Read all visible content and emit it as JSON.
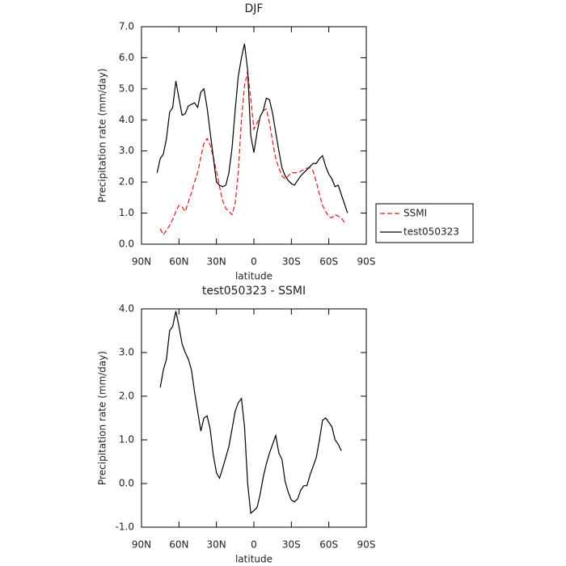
{
  "chart_data": [
    {
      "type": "line",
      "title": "DJF",
      "xlabel": "latitude",
      "ylabel": "Precipitation rate (mm/day)",
      "x": [
        77.5,
        75,
        72.5,
        70,
        67.5,
        65,
        62.5,
        60,
        57.5,
        55,
        52.5,
        50,
        47.5,
        45,
        42.5,
        40,
        37.5,
        35,
        32.5,
        30,
        27.5,
        25,
        22.5,
        20,
        17.5,
        15,
        12.5,
        10,
        7.5,
        5,
        2.5,
        0,
        -2.5,
        -5,
        -7.5,
        -10,
        -12.5,
        -15,
        -17.5,
        -20,
        -22.5,
        -25,
        -27.5,
        -30,
        -32.5,
        -35,
        -37.5,
        -40,
        -42.5,
        -45,
        -47.5,
        -50,
        -52.5,
        -55,
        -57.5,
        -60,
        -62.5,
        -65,
        -67.5,
        -70,
        -72.5,
        -75
      ],
      "series": [
        {
          "name": "SSMI",
          "color": "#e8141c",
          "linestyle": "dashed",
          "values": [
            null,
            0.5,
            0.3,
            0.45,
            0.6,
            0.8,
            1.05,
            1.25,
            1.2,
            1.05,
            1.35,
            1.65,
            2.0,
            2.3,
            2.8,
            3.25,
            3.4,
            3.2,
            2.8,
            2.35,
            1.85,
            1.4,
            1.15,
            1.05,
            0.95,
            1.3,
            2.3,
            4.0,
            5.1,
            5.55,
            4.7,
            3.7,
            3.9,
            4.1,
            4.3,
            4.35,
            3.9,
            3.3,
            2.75,
            2.45,
            2.2,
            2.1,
            2.2,
            2.3,
            2.3,
            2.3,
            2.35,
            2.4,
            2.45,
            2.45,
            2.35,
            2.0,
            1.6,
            1.25,
            1.05,
            0.88,
            0.85,
            0.95,
            0.9,
            0.85,
            0.7,
            null
          ]
        },
        {
          "name": "test050323",
          "color": "#000000",
          "linestyle": "solid",
          "values": [
            2.3,
            2.75,
            2.9,
            3.4,
            4.25,
            4.4,
            5.25,
            4.7,
            4.15,
            4.2,
            4.45,
            4.5,
            4.55,
            4.4,
            4.9,
            5.0,
            4.4,
            3.6,
            2.8,
            2.0,
            1.9,
            1.85,
            1.9,
            2.3,
            3.1,
            4.3,
            5.4,
            6.0,
            6.45,
            5.6,
            3.5,
            2.95,
            3.6,
            4.1,
            4.3,
            4.7,
            4.65,
            4.2,
            3.6,
            3.0,
            2.45,
            2.2,
            2.05,
            1.95,
            1.9,
            2.05,
            2.2,
            2.3,
            2.4,
            2.5,
            2.6,
            2.6,
            2.75,
            2.85,
            2.5,
            2.25,
            2.1,
            1.85,
            1.9,
            1.6,
            1.3,
            1.0
          ]
        }
      ],
      "xlim": [
        90,
        -90
      ],
      "xticks": [
        {
          "value": 90,
          "label": "90N"
        },
        {
          "value": 60,
          "label": "60N"
        },
        {
          "value": 30,
          "label": "30N"
        },
        0,
        {
          "value": -30,
          "label": "30S"
        },
        {
          "value": -60,
          "label": "60S"
        },
        {
          "value": -90,
          "label": "90S"
        }
      ],
      "ylim": [
        0,
        7
      ],
      "yticks": [
        {
          "value": 0,
          "label": "0.0"
        },
        {
          "value": 1,
          "label": "1.0"
        },
        {
          "value": 2,
          "label": "2.0"
        },
        {
          "value": 3,
          "label": "3.0"
        },
        {
          "value": 4,
          "label": "4.0"
        },
        {
          "value": 5,
          "label": "5.0"
        },
        {
          "value": 6,
          "label": "6.0"
        },
        {
          "value": 7,
          "label": "7.0"
        }
      ],
      "legend": "right"
    },
    {
      "type": "line",
      "title": "test050323 - SSMI",
      "xlabel": "latitude",
      "ylabel": "Precipitation rate (mm/day)",
      "x": [
        77.5,
        75,
        72.5,
        70,
        67.5,
        65,
        62.5,
        60,
        57.5,
        55,
        52.5,
        50,
        47.5,
        45,
        42.5,
        40,
        37.5,
        35,
        32.5,
        30,
        27.5,
        25,
        22.5,
        20,
        17.5,
        15,
        12.5,
        10,
        7.5,
        5,
        2.5,
        0,
        -2.5,
        -5,
        -7.5,
        -10,
        -12.5,
        -15,
        -17.5,
        -20,
        -22.5,
        -25,
        -27.5,
        -30,
        -32.5,
        -35,
        -37.5,
        -40,
        -42.5,
        -45,
        -47.5,
        -50,
        -52.5,
        -55,
        -57.5,
        -60,
        -62.5,
        -65,
        -67.5,
        -70,
        -72.5,
        -75
      ],
      "color": "#000000",
      "values": [
        null,
        2.2,
        2.6,
        2.85,
        3.5,
        3.6,
        3.95,
        3.6,
        3.2,
        3.0,
        2.85,
        2.6,
        2.1,
        1.65,
        1.2,
        1.5,
        1.55,
        1.25,
        0.65,
        0.25,
        0.12,
        0.35,
        0.6,
        0.85,
        1.25,
        1.65,
        1.85,
        1.95,
        1.3,
        0.0,
        -0.68,
        -0.62,
        -0.55,
        -0.25,
        0.15,
        0.45,
        0.7,
        0.9,
        1.1,
        0.7,
        0.55,
        0.05,
        -0.2,
        -0.38,
        -0.42,
        -0.35,
        -0.15,
        -0.05,
        -0.05,
        0.2,
        0.4,
        0.6,
        1.0,
        1.45,
        1.5,
        1.4,
        1.3,
        1.0,
        0.9,
        0.75,
        null,
        null
      ],
      "xlim": [
        90,
        -90
      ],
      "xticks": [
        {
          "value": 90,
          "label": "90N"
        },
        {
          "value": 60,
          "label": "60N"
        },
        {
          "value": 30,
          "label": "30N"
        },
        0,
        {
          "value": -30,
          "label": "30S"
        },
        {
          "value": -60,
          "label": "60S"
        },
        {
          "value": -90,
          "label": "90S"
        }
      ],
      "ylim": [
        -1,
        4
      ],
      "yticks": [
        {
          "value": -1,
          "label": "-1.0"
        },
        {
          "value": 0,
          "label": "0.0"
        },
        {
          "value": 1,
          "label": "1.0"
        },
        {
          "value": 2,
          "label": "2.0"
        },
        {
          "value": 3,
          "label": "3.0"
        },
        {
          "value": 4,
          "label": "4.0"
        }
      ]
    }
  ]
}
